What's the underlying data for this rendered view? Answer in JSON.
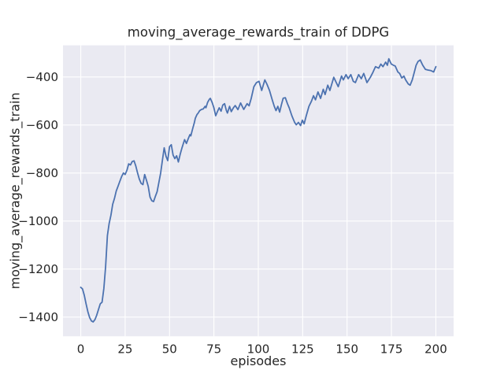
{
  "figure": {
    "background": "#ffffff"
  },
  "chart_data": {
    "type": "line",
    "title": "moving_average_rewards_train of DDPG",
    "xlabel": "episodes",
    "ylabel": "moving_average_rewards_train",
    "xlim": [
      -10,
      210
    ],
    "ylim": [
      -1480,
      -268
    ],
    "grid": true,
    "legend_position": "none",
    "xticks": [
      0,
      25,
      50,
      75,
      100,
      125,
      150,
      175,
      200
    ],
    "xtick_labels": [
      "0",
      "25",
      "50",
      "75",
      "100",
      "125",
      "150",
      "175",
      "200"
    ],
    "yticks": [
      -400,
      -600,
      -800,
      -1000,
      -1200,
      -1400
    ],
    "ytick_labels": [
      "−400",
      "−600",
      "−800",
      "−1000",
      "−1200",
      "−1400"
    ],
    "style": {
      "plot_background": "#eaeaf2",
      "grid_color": "#ffffff",
      "line_color": "#4c72b0",
      "text_color": "#262626",
      "line_width": 1.8
    },
    "series": [
      {
        "name": "moving_average_rewards_train",
        "x": [
          0,
          1,
          2,
          3,
          4,
          5,
          6,
          7,
          8,
          9,
          10,
          11,
          12,
          13,
          14,
          15,
          16,
          17,
          18,
          19,
          20,
          21,
          22,
          23,
          24,
          25,
          26,
          27,
          28,
          29,
          30,
          31,
          32,
          33,
          34,
          35,
          36,
          37,
          38,
          39,
          40,
          41,
          42,
          43,
          44,
          45,
          46,
          47,
          48,
          49,
          50,
          51,
          52,
          53,
          54,
          55,
          56,
          57,
          58.5,
          59.5,
          60.5,
          61.5,
          62,
          63,
          64,
          64.5,
          65.5,
          66,
          67,
          68,
          69,
          70,
          70.5,
          71.5,
          72.5,
          73,
          74,
          75,
          76,
          77,
          78,
          79,
          80,
          81,
          82,
          82.6,
          83.8,
          84.8,
          86,
          87,
          88.5,
          90,
          91.8,
          93.7,
          94.8,
          96,
          97.5,
          99,
          100.4,
          101.9,
          103.7,
          104.9,
          106.3,
          107.8,
          109,
          110,
          111,
          112,
          113,
          114,
          115.2,
          116.4,
          117.4,
          118.9,
          120.4,
          121.4,
          122.6,
          123.8,
          124.8,
          125.8,
          127,
          128.5,
          130,
          131.1,
          132.2,
          133.6,
          135.1,
          136.6,
          137.6,
          139.1,
          140.3,
          142.5,
          143.9,
          145,
          146.9,
          147.9,
          149.4,
          150.6,
          152.1,
          153.5,
          154.7,
          156.5,
          158,
          159.4,
          161.2,
          163.1,
          164.6,
          166,
          167.8,
          169,
          170.2,
          171.7,
          172.7,
          173.5,
          174.9,
          176.1,
          177.1,
          178.6,
          179.6,
          180.8,
          182,
          183,
          184.5,
          185.5,
          186.7,
          187.9,
          188.9,
          190,
          191.2,
          192.6,
          194.1,
          195.6,
          197.1,
          198.8,
          200
        ],
        "y": [
          -1276,
          -1283,
          -1310,
          -1345,
          -1378,
          -1402,
          -1416,
          -1420,
          -1410,
          -1392,
          -1368,
          -1345,
          -1338,
          -1280,
          -1190,
          -1060,
          -1010,
          -975,
          -930,
          -905,
          -875,
          -855,
          -835,
          -815,
          -800,
          -806,
          -788,
          -762,
          -766,
          -752,
          -749,
          -770,
          -800,
          -825,
          -843,
          -848,
          -806,
          -830,
          -855,
          -900,
          -915,
          -919,
          -898,
          -878,
          -840,
          -800,
          -745,
          -695,
          -730,
          -748,
          -690,
          -682,
          -725,
          -740,
          -728,
          -754,
          -722,
          -695,
          -661,
          -677,
          -658,
          -640,
          -645,
          -616,
          -590,
          -572,
          -556,
          -552,
          -540,
          -535,
          -533,
          -522,
          -528,
          -505,
          -492,
          -489,
          -506,
          -528,
          -561,
          -544,
          -528,
          -542,
          -517,
          -511,
          -539,
          -550,
          -522,
          -544,
          -528,
          -519,
          -536,
          -508,
          -535,
          -511,
          -520,
          -489,
          -440,
          -423,
          -418,
          -456,
          -412,
          -430,
          -456,
          -494,
          -522,
          -540,
          -522,
          -546,
          -516,
          -488,
          -486,
          -511,
          -528,
          -561,
          -588,
          -599,
          -589,
          -602,
          -580,
          -595,
          -561,
          -522,
          -500,
          -478,
          -495,
          -462,
          -489,
          -451,
          -473,
          -434,
          -456,
          -401,
          -423,
          -440,
          -396,
          -412,
          -390,
          -407,
          -390,
          -418,
          -423,
          -390,
          -407,
          -385,
          -423,
          -401,
          -380,
          -357,
          -363,
          -346,
          -357,
          -338,
          -351,
          -324,
          -346,
          -351,
          -354,
          -379,
          -385,
          -404,
          -396,
          -412,
          -429,
          -434,
          -412,
          -379,
          -351,
          -335,
          -329,
          -351,
          -368,
          -371,
          -373,
          -379,
          -357
        ]
      }
    ]
  }
}
